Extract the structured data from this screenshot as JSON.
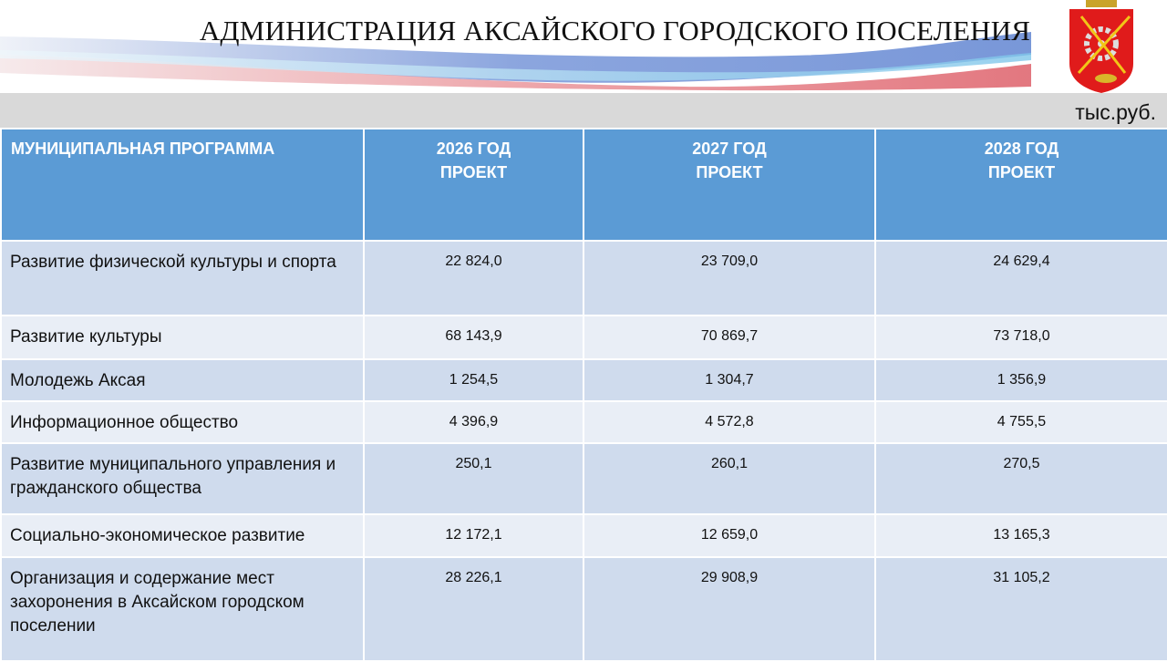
{
  "header": {
    "title": "АДМИНИСТРАЦИЯ АКСАЙСКОГО ГОРОДСКОГО ПОСЕЛЕНИЯ",
    "logo": "coat-of-arms-aksay",
    "units": "тыс.руб."
  },
  "table": {
    "columns": [
      "МУНИЦИПАЛЬНАЯ ПРОГРАММА",
      "2026 ГОД ПРОЕКТ",
      "2027 ГОД ПРОЕКТ",
      "2028 ГОД ПРОЕКТ"
    ],
    "rows": [
      {
        "name": "Развитие физической культуры и спорта",
        "v2026": "22 824,0",
        "v2027": "23 709,0",
        "v2028": "24 629,4"
      },
      {
        "name": "Развитие культуры",
        "v2026": "68 143,9",
        "v2027": "70 869,7",
        "v2028": "73 718,0"
      },
      {
        "name": "Молодежь Аксая",
        "v2026": "1 254,5",
        "v2027": "1 304,7",
        "v2028": "1 356,9"
      },
      {
        "name": "Информационное общество",
        "v2026": "4 396,9",
        "v2027": "4 572,8",
        "v2028": "4 755,5"
      },
      {
        "name": "Развитие муниципального управления и гражданского общества",
        "v2026": "250,1",
        "v2027": "260,1",
        "v2028": "270,5"
      },
      {
        "name": "Социально-экономическое развитие",
        "v2026": "12 172,1",
        "v2027": "12 659,0",
        "v2028": "13 165,3"
      },
      {
        "name": "Организация и содержание мест захоронения в Аксайском городском поселении",
        "v2026": "28 226,1",
        "v2027": "29 908,9",
        "v2028": "31 105,2"
      }
    ]
  },
  "colors": {
    "header_blue": "#5b9bd5",
    "row_dark": "#cfdbed",
    "row_light": "#e9eef6",
    "band_gray": "#d9d9d9"
  }
}
